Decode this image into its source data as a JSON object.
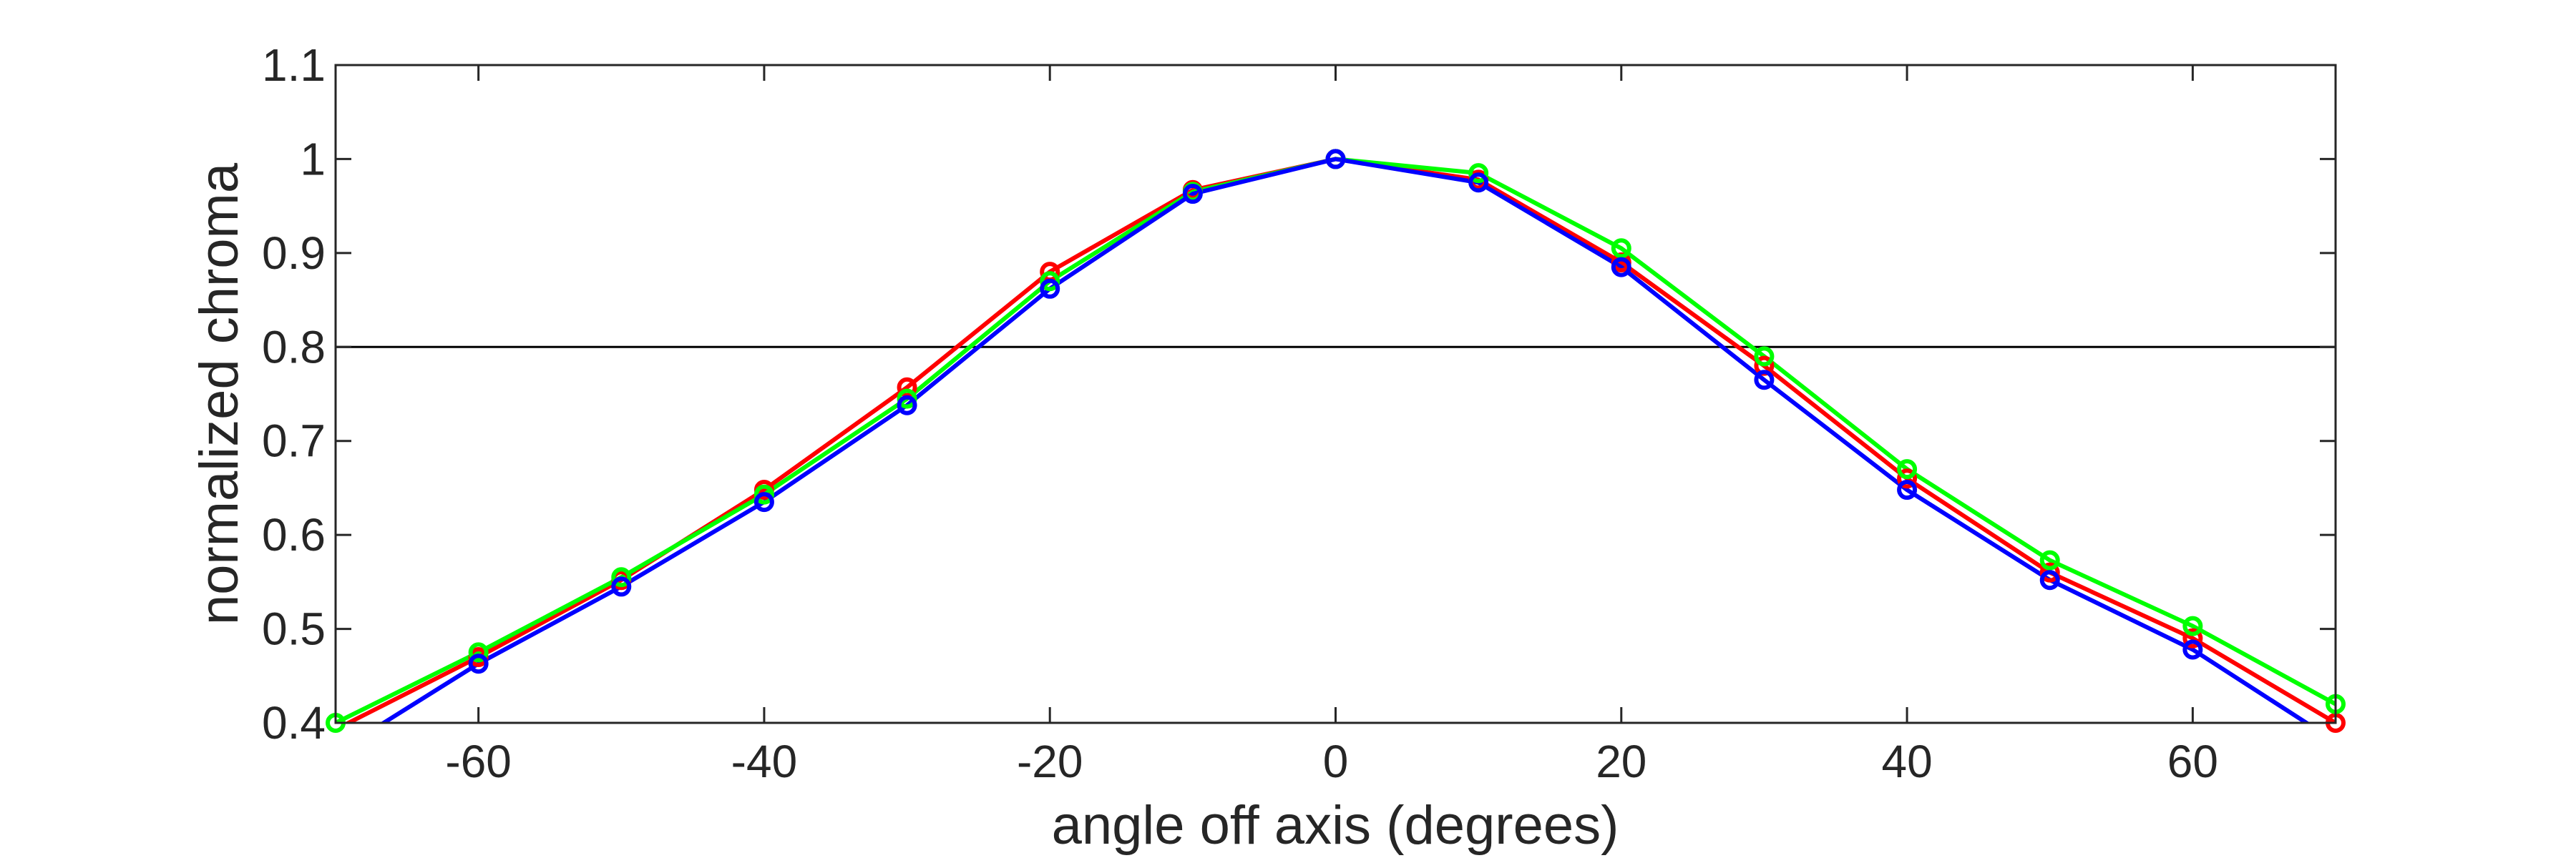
{
  "chart_data": {
    "type": "line",
    "title": "",
    "xlabel": "angle off axis (degrees)",
    "ylabel": "normalized chroma",
    "xlim": [
      -70,
      70
    ],
    "ylim": [
      0.4,
      1.1
    ],
    "xticks": [
      -60,
      -40,
      -20,
      0,
      20,
      40,
      60
    ],
    "yticks": [
      0.4,
      0.5,
      0.6,
      0.7,
      0.8,
      0.9,
      1,
      1.1
    ],
    "xtick_labels": [
      "-60",
      "-40",
      "-20",
      "0",
      "20",
      "40",
      "60"
    ],
    "ytick_labels": [
      "0.4",
      "0.5",
      "0.6",
      "0.7",
      "0.8",
      "0.9",
      "1",
      "1.1"
    ],
    "reference_line": {
      "y": 0.8,
      "color": "#000000"
    },
    "grid": false,
    "legend": "none",
    "x": [
      -70,
      -60,
      -50,
      -40,
      -30,
      -20,
      -10,
      0,
      10,
      20,
      30,
      40,
      50,
      60,
      70
    ],
    "series": [
      {
        "color": "#ff0000",
        "marker": "circle",
        "values": [
          0.393,
          0.47,
          0.552,
          0.648,
          0.757,
          0.88,
          0.967,
          1.0,
          0.978,
          0.89,
          0.78,
          0.66,
          0.56,
          0.49,
          0.4
        ]
      },
      {
        "color": "#00ff00",
        "marker": "circle",
        "values": [
          0.4,
          0.475,
          0.555,
          0.643,
          0.745,
          0.87,
          0.965,
          1.0,
          0.985,
          0.905,
          0.79,
          0.67,
          0.573,
          0.503,
          0.42
        ]
      },
      {
        "color": "#0000ff",
        "marker": "circle",
        "values": [
          0.368,
          0.463,
          0.545,
          0.635,
          0.738,
          0.862,
          0.963,
          1.0,
          0.975,
          0.885,
          0.765,
          0.648,
          0.552,
          0.478,
          0.38
        ]
      }
    ]
  }
}
